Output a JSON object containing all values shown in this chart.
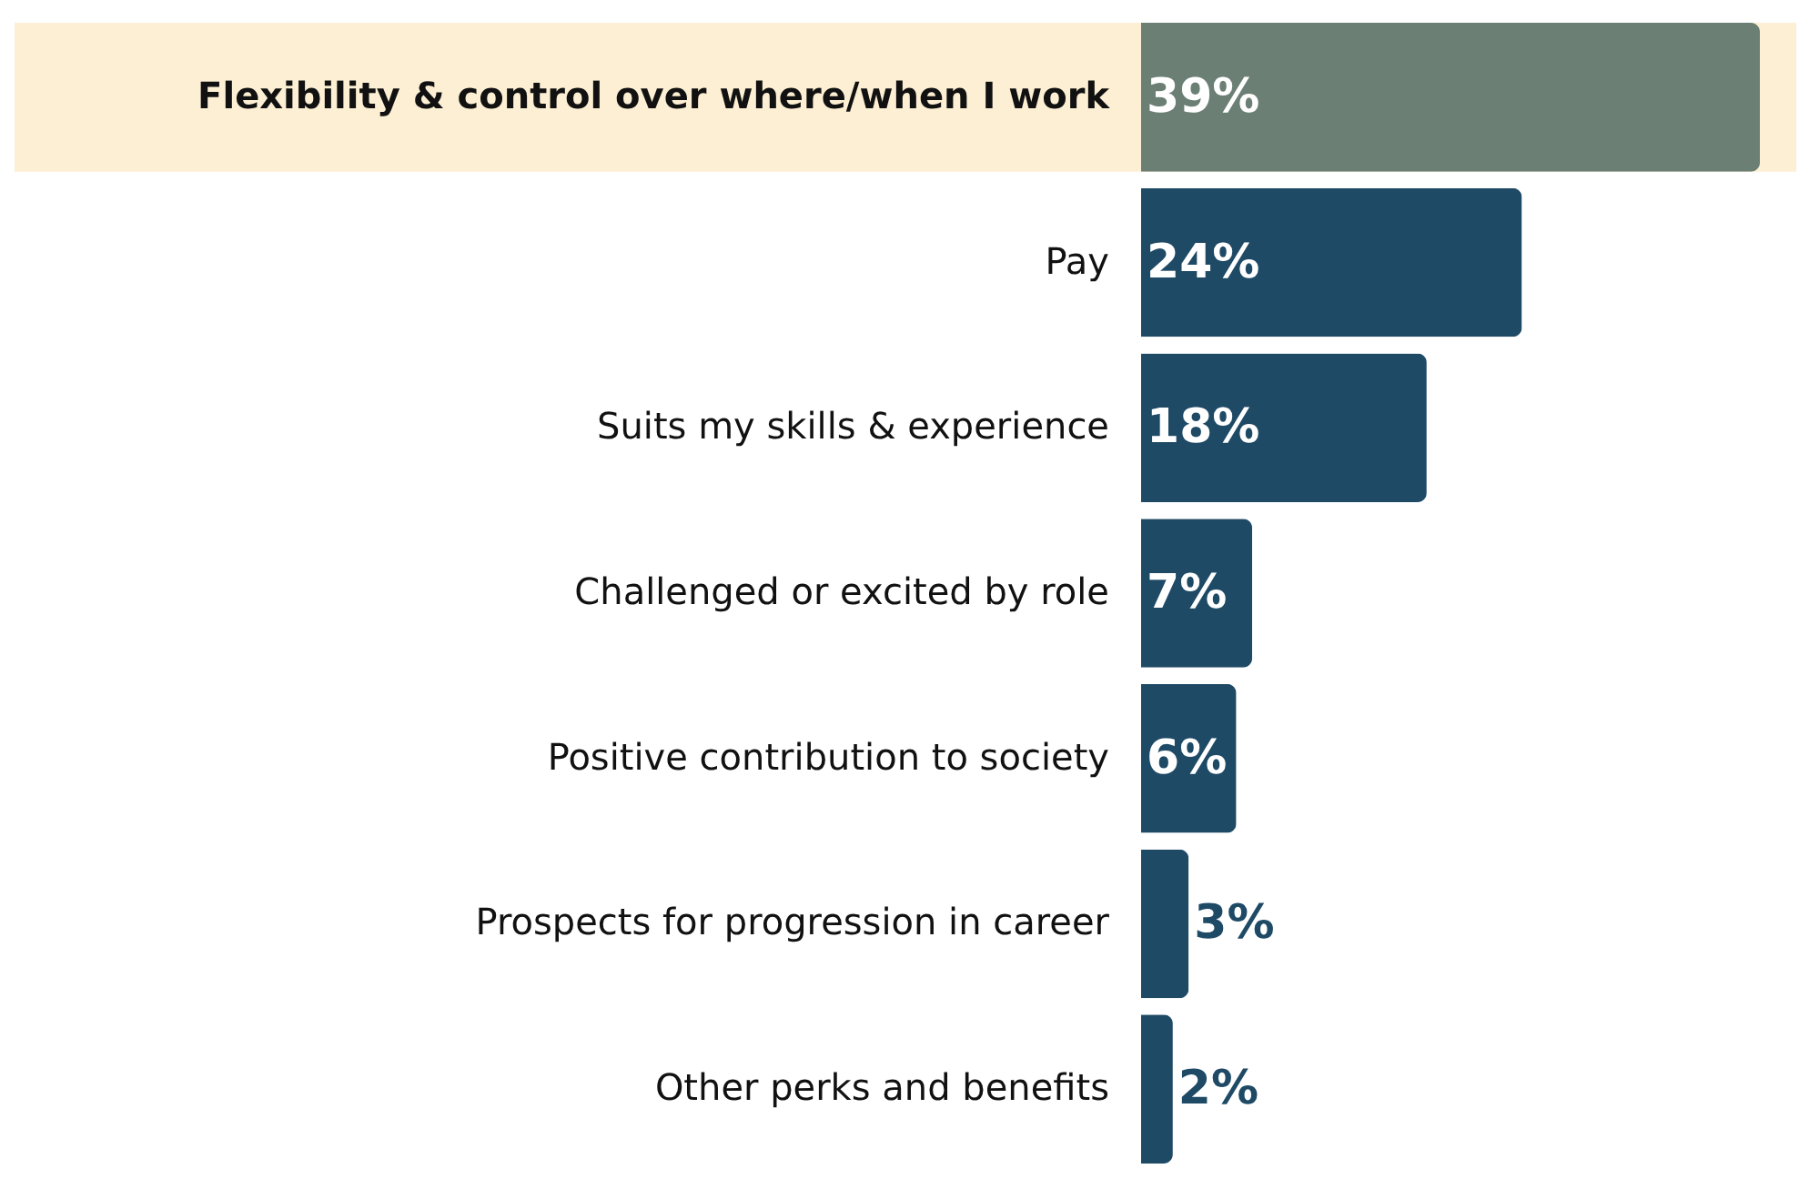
{
  "chart_data": {
    "type": "bar",
    "orientation": "horizontal",
    "categories": [
      "Flexibility & control over where/when I work",
      "Pay",
      "Suits my skills & experience",
      "Challenged or excited by role",
      "Positive contribution to society",
      "Prospects for progression in career",
      "Other perks and benefits"
    ],
    "values": [
      39,
      24,
      18,
      7,
      6,
      3,
      2
    ],
    "value_labels": [
      "39%",
      "24%",
      "18%",
      "7%",
      "6%",
      "3%",
      "2%"
    ],
    "colors": [
      "#6b7f74",
      "#1f4a66",
      "#1f4a66",
      "#1f4a66",
      "#1f4a66",
      "#1f4a66",
      "#1f4a66"
    ],
    "bands": [
      {
        "axis": "y",
        "from": "Flexibility & control over where/when I work",
        "to": "Flexibility & control over where/when I work",
        "color": "#fcefd3"
      }
    ]
  }
}
